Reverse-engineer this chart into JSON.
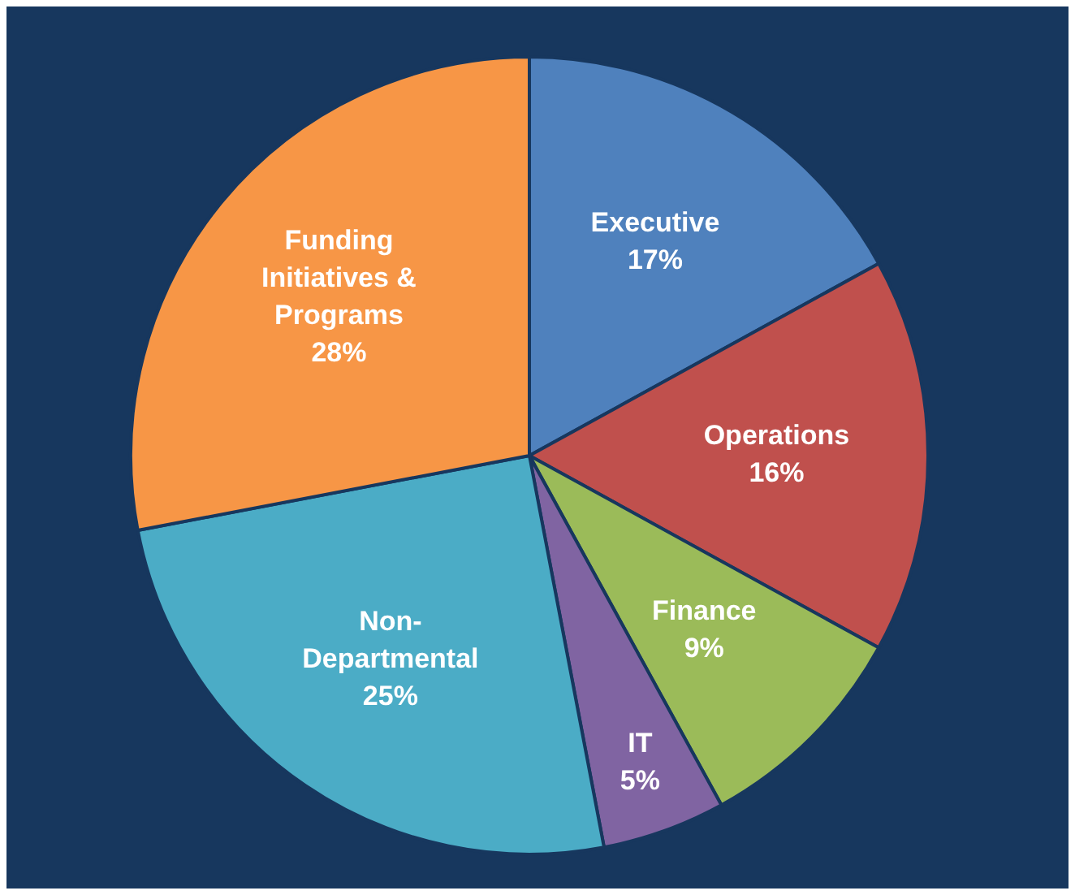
{
  "chart_data": {
    "type": "pie",
    "categories": [
      "Executive",
      "Operations",
      "Finance",
      "IT",
      "Non-Departmental",
      "Funding Initiatives & Programs"
    ],
    "values": [
      17,
      16,
      9,
      5,
      25,
      28
    ],
    "colors": [
      "#4f81bd",
      "#c0504d",
      "#9bbb59",
      "#8064a2",
      "#4bacc6",
      "#f79646"
    ],
    "value_labels": [
      "17%",
      "16%",
      "9%",
      "5%",
      "25%",
      "28%"
    ],
    "legend": false
  }
}
